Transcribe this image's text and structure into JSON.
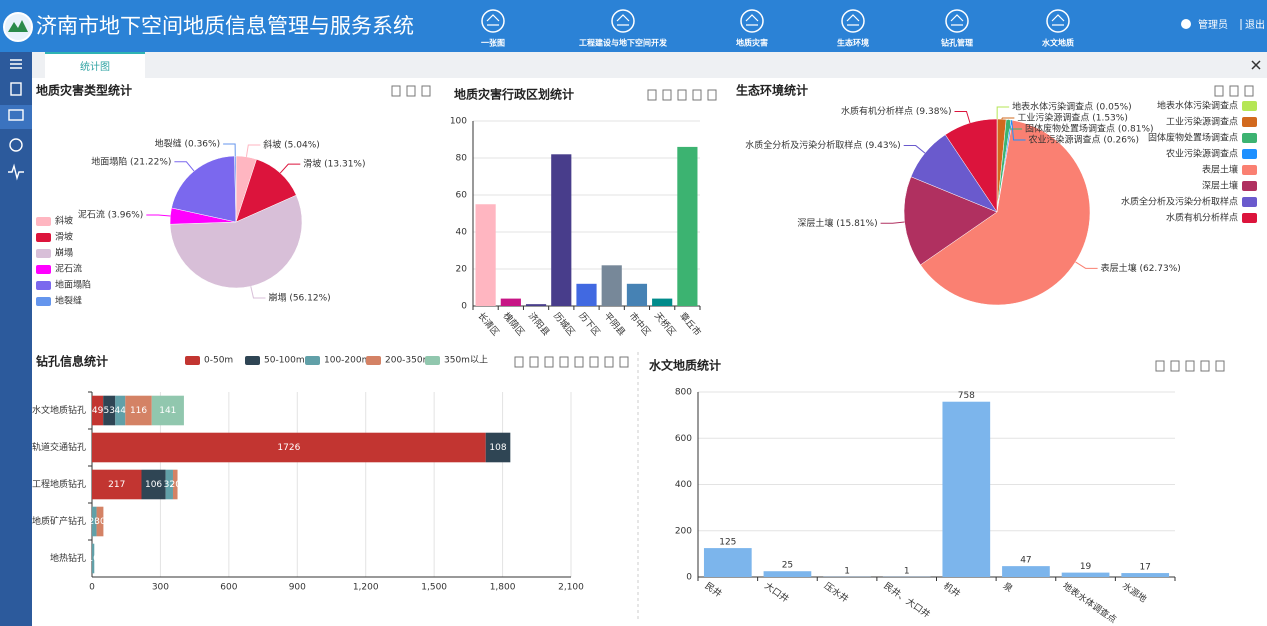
{
  "header": {
    "title": "济南市地下空间地质信息管理与服务系统",
    "nav": [
      "一张图",
      "工程建设与地下空间开发",
      "地质灾害",
      "生态环境",
      "钻孔管理",
      "水文地质"
    ],
    "user": "管理员",
    "logout": "退出"
  },
  "tab": "统计图",
  "chart_data": [
    {
      "type": "pie",
      "title": "地质灾害类型统计",
      "categories": [
        "斜坡",
        "滑坡",
        "崩塌",
        "泥石流",
        "地面塌陷",
        "地裂缝"
      ],
      "values": [
        5.04,
        13.31,
        56.12,
        3.96,
        21.22,
        0.36
      ],
      "value_labels": [
        "斜坡 (5.04%)",
        "滑坡 (13.31%)",
        "崩塌 (56.12%)",
        "泥石流 (3.96%)",
        "地面塌陷 (21.22%)",
        "地裂缝 (0.36%)"
      ],
      "colors": [
        "#ffb6c1",
        "#dc143c",
        "#d8bfd8",
        "#ff00ff",
        "#7b68ee",
        "#6495ed"
      ],
      "legend": "bottom-left"
    },
    {
      "type": "bar",
      "title": "地质灾害行政区划统计",
      "categories": [
        "长清区",
        "槐荫区",
        "济阳县",
        "历城区",
        "历下区",
        "平阴县",
        "市中区",
        "天桥区",
        "章丘市"
      ],
      "values": [
        55,
        4,
        1,
        82,
        12,
        22,
        12,
        4,
        86
      ],
      "colors": [
        "#ffb6c1",
        "#c71585",
        "#483d8b",
        "#483d8b",
        "#4169e1",
        "#778899",
        "#4682b4",
        "#008b8b",
        "#3cb371"
      ],
      "ylim": [
        0,
        100
      ],
      "yticks": [
        0,
        20,
        40,
        60,
        80,
        100
      ],
      "grid": true
    },
    {
      "type": "pie",
      "title": "生态环境统计",
      "categories": [
        "地表水体污染调查点",
        "工业污染源调查点",
        "固体废物处置场调查点",
        "农业污染源调查点",
        "表层土壤",
        "深层土壤",
        "水质全分析及污染分析取样点",
        "水质有机分析样点"
      ],
      "values": [
        0.05,
        1.53,
        0.81,
        0.26,
        62.73,
        15.81,
        9.43,
        9.38
      ],
      "value_labels": [
        "地表水体污染调查点 (0.05%)",
        "工业污染源调查点 (1.53%)",
        "固体废物处置场调查点 (0.81%)",
        "农业污染源调查点 (0.26%)",
        "表层土壤 (62.73%)",
        "深层土壤 (15.81%)",
        "水质全分析及污染分析取样点 (9.43%)",
        "水质有机分析样点 (9.38%)"
      ],
      "colors": [
        "#b5e655",
        "#d2691e",
        "#3cb371",
        "#1e90ff",
        "#fa8072",
        "#b03060",
        "#6a5acd",
        "#dc143c"
      ],
      "legend": "right"
    },
    {
      "type": "bar",
      "orientation": "horizontal",
      "stacked": true,
      "title": "钻孔信息统计",
      "categories": [
        "水文地质钻孔",
        "轨道交通钻孔",
        "工程地质钻孔",
        "地质矿产钻孔",
        "地热钻孔"
      ],
      "series": [
        {
          "name": "0-50m",
          "color": "#c23531",
          "values": [
            49,
            1726,
            217,
            null,
            null
          ]
        },
        {
          "name": "50-100m",
          "color": "#2f4554",
          "values": [
            53,
            108,
            106,
            null,
            null
          ]
        },
        {
          "name": "100-200m",
          "color": "#61a0a8",
          "values": [
            44,
            null,
            32,
            20,
            10
          ]
        },
        {
          "name": "200-350m",
          "color": "#d48265",
          "values": [
            116,
            null,
            20,
            30,
            null
          ]
        },
        {
          "name": "350m以上",
          "color": "#91c7ae",
          "values": [
            141,
            null,
            null,
            null,
            null
          ]
        }
      ],
      "xlim": [
        0,
        2100
      ],
      "xticks": [
        0,
        300,
        600,
        900,
        {
          "value": 1200,
          "label": "1,200"
        },
        {
          "value": 1500,
          "label": "1,500"
        },
        {
          "value": 1800,
          "label": "1,800"
        },
        {
          "value": 2100,
          "label": "2,100"
        }
      ],
      "grid": true,
      "legend": "top"
    },
    {
      "type": "bar",
      "title": "水文地质统计",
      "categories": [
        "民井",
        "大口井",
        "压水井",
        "民井、大口井",
        "机井",
        "泉",
        "地表水体调查点",
        "水源地"
      ],
      "values": [
        125,
        25,
        1,
        1,
        758,
        47,
        19,
        17
      ],
      "color": "#7cb5ec",
      "show_values": true,
      "ylim": [
        0,
        800
      ],
      "yticks": [
        0,
        200,
        400,
        600,
        800
      ],
      "grid": true
    }
  ]
}
